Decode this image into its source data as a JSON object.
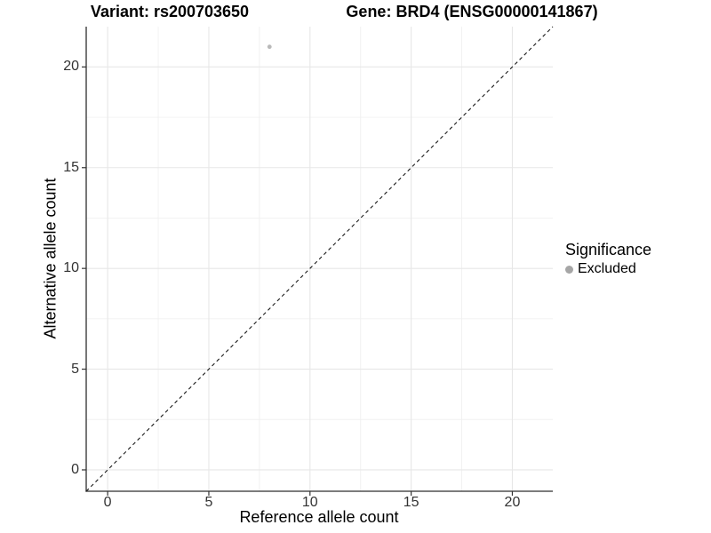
{
  "chart_data": {
    "type": "scatter",
    "titles": {
      "variant": "Variant: rs200703650",
      "gene": "Gene: BRD4 (ENSG00000141867)"
    },
    "xlabel": "Reference allele count",
    "ylabel": "Alternative allele count",
    "xlim": [
      -1.06,
      22.0
    ],
    "ylim": [
      -1.06,
      22.0
    ],
    "x_ticks": [
      0,
      5,
      10,
      15,
      20
    ],
    "y_ticks": [
      0,
      5,
      10,
      15,
      20
    ],
    "minor_grid_step": 2.5,
    "grid": true,
    "reference_line": {
      "equation": "y = x",
      "style": "dashed",
      "color": "#1a1a1a"
    },
    "series": [
      {
        "name": "Excluded",
        "color": "#b9b9b9",
        "points": [
          {
            "x": 8,
            "y": 21
          }
        ]
      }
    ],
    "legend": {
      "title": "Significance",
      "position": "right",
      "items": [
        {
          "label": "Excluded",
          "color": "#a6a6a6"
        }
      ]
    }
  },
  "colors": {
    "background": "#ffffff",
    "grid_major": "#e7e7e7",
    "grid_minor": "#f0f0f0",
    "axis_line": "#2e2e2e",
    "tick_mark": "#333333",
    "tick_text": "#333333",
    "title_text": "#000000"
  }
}
